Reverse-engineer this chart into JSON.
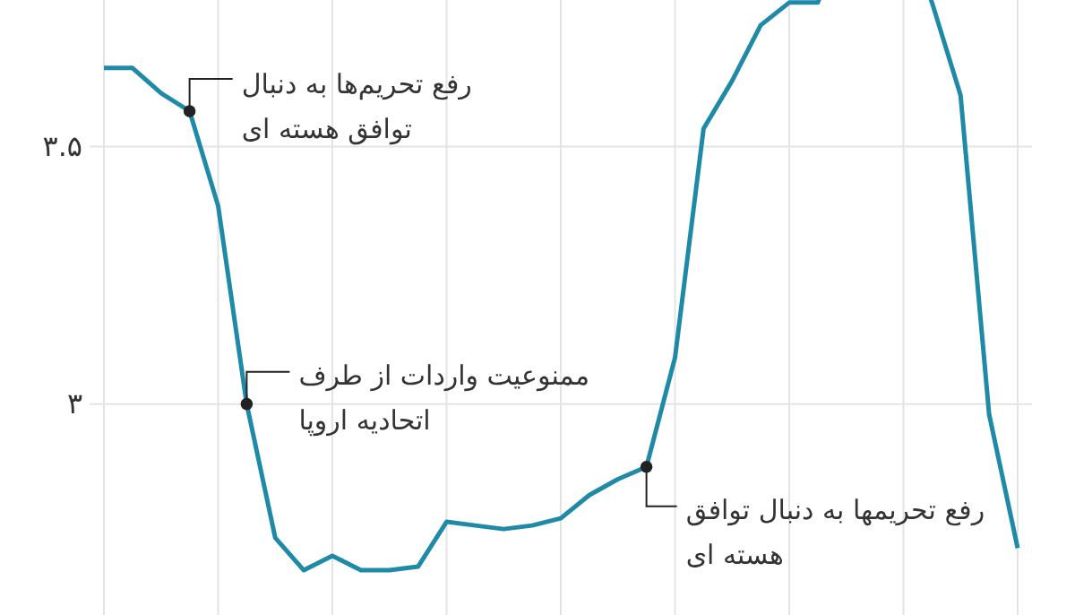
{
  "chart_data": {
    "type": "line",
    "categories": [
      null,
      null,
      null,
      null,
      null,
      null,
      null,
      null,
      null,
      null,
      null,
      null,
      null,
      null,
      null,
      null,
      null,
      null,
      null,
      null,
      null,
      null,
      null,
      null,
      null,
      null,
      null,
      null,
      null,
      null,
      null,
      null,
      null
    ],
    "series": [
      {
        "color": "#1f8aa8",
        "values": [
          3.653,
          3.653,
          3.604,
          3.569,
          3.385,
          3.0,
          2.74,
          2.677,
          2.705,
          2.677,
          2.677,
          2.684,
          2.771,
          2.764,
          2.757,
          2.764,
          2.778,
          2.823,
          2.854,
          2.878,
          3.09,
          3.535,
          3.628,
          3.736,
          3.78,
          3.78,
          null,
          null,
          null,
          3.78,
          3.6,
          2.98,
          2.72
        ]
      },
      {
        "type": "scatter",
        "color": "#222222",
        "marker": "circle",
        "values": [
          null,
          null,
          null,
          3.569,
          null,
          3.0,
          null,
          null,
          null,
          null,
          null,
          null,
          null,
          null,
          null,
          null,
          null,
          null,
          null,
          2.878,
          null,
          null,
          null,
          null,
          null,
          null,
          null,
          null,
          null,
          null,
          null,
          null,
          null
        ]
      }
    ],
    "ylim": [
      2.59,
      3.785
    ],
    "yticks": [
      {
        "value": 3,
        "label": "۳"
      },
      {
        "value": 3.5,
        "label": "۳.۵"
      }
    ],
    "grid": true,
    "tick_labels": "y",
    "line_style": "solid",
    "annotations": [
      "رفع تحریم‌ها به دنبال\nتوافق هسته ای",
      "ممنوعیت واردات از طرف\nاتحادیه اروپا",
      "رفع تحریمها به دنبال توافق\nهسته ای"
    ]
  }
}
